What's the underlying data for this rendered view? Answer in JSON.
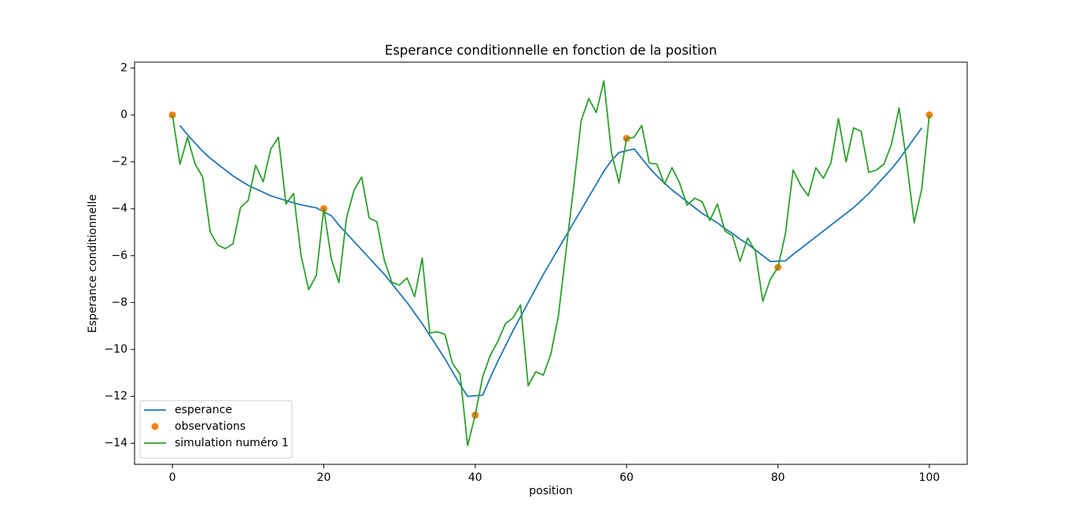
{
  "chart_data": {
    "type": "line",
    "title": "Esperance conditionnelle en fonction de la position",
    "x_label": "position",
    "y_label": "Esperance conditionnelle",
    "xlim": [
      -5,
      105
    ],
    "ylim": [
      -14.9,
      2.25
    ],
    "xticks": [
      0,
      20,
      40,
      60,
      80,
      100
    ],
    "yticks": [
      {
        "value": -14,
        "label": "−14"
      },
      {
        "value": -12,
        "label": "−12"
      },
      {
        "value": -10,
        "label": "−10"
      },
      {
        "value": -8,
        "label": "−8"
      },
      {
        "value": -6,
        "label": "−6"
      },
      {
        "value": -4,
        "label": "−4"
      },
      {
        "value": -2,
        "label": "−2"
      },
      0,
      2
    ],
    "legend": "lower left",
    "series": [
      {
        "name": "esperance",
        "kind": "line",
        "color": "#1f77b4",
        "x": [
          1,
          2,
          3,
          4,
          5,
          6,
          7,
          8,
          9,
          10,
          11,
          12,
          13,
          14,
          15,
          16,
          17,
          18,
          19,
          21,
          22,
          23,
          24,
          25,
          26,
          27,
          28,
          29,
          30,
          31,
          32,
          33,
          34,
          35,
          36,
          37,
          38,
          39,
          41,
          42,
          43,
          44,
          45,
          46,
          47,
          48,
          49,
          50,
          51,
          52,
          53,
          54,
          55,
          56,
          57,
          58,
          59,
          61,
          62,
          63,
          64,
          65,
          66,
          67,
          68,
          69,
          70,
          71,
          72,
          73,
          74,
          75,
          76,
          77,
          78,
          79,
          81,
          82,
          83,
          84,
          85,
          86,
          87,
          88,
          89,
          90,
          91,
          92,
          93,
          94,
          95,
          96,
          97,
          98,
          99
        ],
        "values": [
          -0.45,
          -0.85,
          -1.2,
          -1.55,
          -1.85,
          -2.1,
          -2.35,
          -2.6,
          -2.8,
          -3.0,
          -3.15,
          -3.3,
          -3.45,
          -3.55,
          -3.65,
          -3.75,
          -3.83,
          -3.9,
          -3.96,
          -4.3,
          -4.7,
          -5.05,
          -5.4,
          -5.75,
          -6.1,
          -6.45,
          -6.8,
          -7.2,
          -7.6,
          -8.0,
          -8.45,
          -8.9,
          -9.4,
          -9.9,
          -10.4,
          -10.95,
          -11.5,
          -12.0,
          -11.95,
          -11.2,
          -10.5,
          -9.85,
          -9.2,
          -8.6,
          -8.0,
          -7.4,
          -6.8,
          -6.25,
          -5.7,
          -5.15,
          -4.6,
          -4.05,
          -3.5,
          -2.95,
          -2.4,
          -1.95,
          -1.6,
          -1.45,
          -1.85,
          -2.25,
          -2.6,
          -2.9,
          -3.2,
          -3.45,
          -3.7,
          -3.95,
          -4.2,
          -4.4,
          -4.6,
          -4.85,
          -5.05,
          -5.3,
          -5.5,
          -5.75,
          -6.0,
          -6.25,
          -6.22,
          -5.95,
          -5.7,
          -5.45,
          -5.2,
          -4.95,
          -4.7,
          -4.45,
          -4.2,
          -3.95,
          -3.65,
          -3.35,
          -3.0,
          -2.65,
          -2.3,
          -1.9,
          -1.45,
          -1.0,
          -0.55
        ]
      },
      {
        "name": "observations",
        "kind": "scatter",
        "color": "#ff7f0e",
        "x": [
          0,
          20,
          40,
          60,
          80,
          100
        ],
        "values": [
          0,
          -4,
          -12.8,
          -1.0,
          -6.5,
          0
        ]
      },
      {
        "name": "simulation numéro 1",
        "kind": "line",
        "color": "#2ca02c",
        "x": [
          0,
          1,
          2,
          3,
          4,
          5,
          6,
          7,
          8,
          9,
          10,
          11,
          12,
          13,
          14,
          15,
          16,
          17,
          18,
          19,
          20,
          21,
          22,
          23,
          24,
          25,
          26,
          27,
          28,
          29,
          30,
          31,
          32,
          33,
          34,
          35,
          36,
          37,
          38,
          39,
          40,
          41,
          42,
          43,
          44,
          45,
          46,
          47,
          48,
          49,
          50,
          51,
          52,
          53,
          54,
          55,
          56,
          57,
          58,
          59,
          60,
          61,
          62,
          63,
          64,
          65,
          66,
          67,
          68,
          69,
          70,
          71,
          72,
          73,
          74,
          75,
          76,
          77,
          78,
          79,
          80,
          81,
          82,
          83,
          84,
          85,
          86,
          87,
          88,
          89,
          90,
          91,
          92,
          93,
          94,
          95,
          96,
          97,
          98,
          99,
          100
        ],
        "values": [
          0,
          -2.1,
          -0.95,
          -2.1,
          -2.65,
          -5.0,
          -5.55,
          -5.7,
          -5.5,
          -3.95,
          -3.65,
          -2.15,
          -2.85,
          -1.45,
          -0.95,
          -3.8,
          -3.35,
          -6.0,
          -7.45,
          -6.85,
          -4.0,
          -6.15,
          -7.15,
          -4.4,
          -3.2,
          -2.65,
          -4.4,
          -4.55,
          -6.2,
          -7.15,
          -7.25,
          -6.95,
          -7.75,
          -6.1,
          -9.3,
          -9.25,
          -9.35,
          -10.6,
          -11.05,
          -14.1,
          -12.8,
          -11.15,
          -10.25,
          -9.65,
          -8.9,
          -8.65,
          -8.1,
          -11.55,
          -10.95,
          -11.1,
          -10.2,
          -8.55,
          -5.8,
          -3.1,
          -0.25,
          0.7,
          0.1,
          1.45,
          -1.6,
          -2.9,
          -1.0,
          -0.95,
          -0.45,
          -2.05,
          -2.1,
          -2.95,
          -2.25,
          -2.9,
          -3.85,
          -3.55,
          -3.7,
          -4.5,
          -3.8,
          -4.95,
          -5.15,
          -6.25,
          -5.25,
          -5.8,
          -7.95,
          -7.0,
          -6.5,
          -5.05,
          -2.35,
          -3.0,
          -3.45,
          -2.25,
          -2.7,
          -2.05,
          -0.15,
          -2.0,
          -0.55,
          -0.7,
          -2.45,
          -2.35,
          -2.1,
          -1.25,
          0.3,
          -2.0,
          -4.6,
          -3.15,
          0
        ]
      }
    ]
  }
}
